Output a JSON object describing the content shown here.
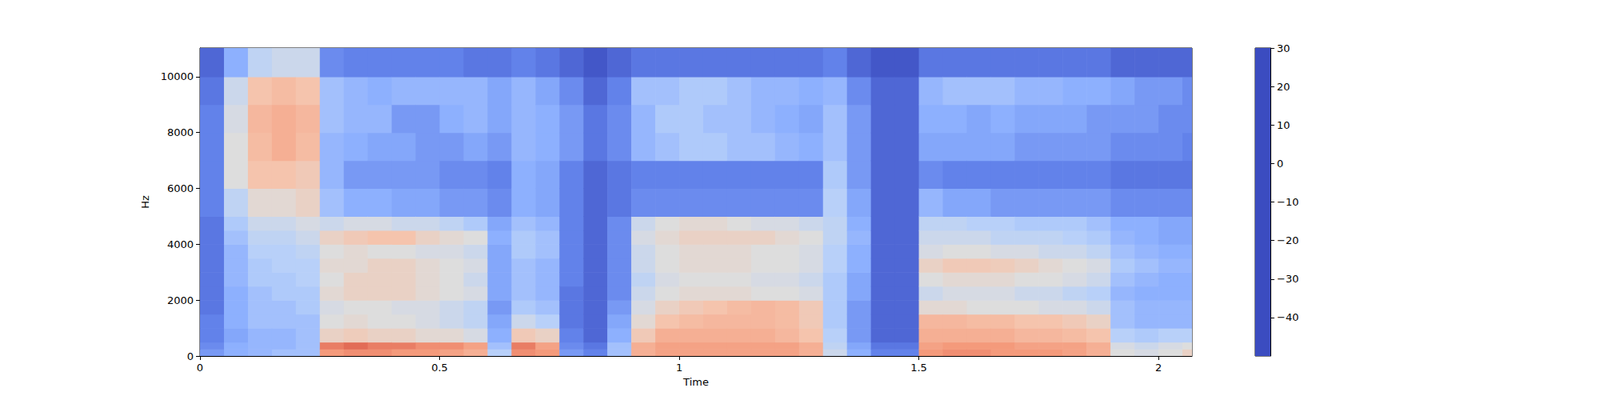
{
  "chart_data": {
    "type": "heatmap",
    "x_label": "Time",
    "y_label": "Hz",
    "xlim": [
      0,
      2.07
    ],
    "ylim": [
      0,
      11025
    ],
    "xticks": [
      0,
      0.5,
      1,
      1.5,
      2
    ],
    "yticks": [
      0,
      2000,
      4000,
      6000,
      8000,
      10000
    ],
    "grid": false,
    "time_edges": [
      0,
      0.05,
      0.1,
      0.15,
      0.2,
      0.25,
      0.3,
      0.35,
      0.4,
      0.45,
      0.5,
      0.55,
      0.6,
      0.65,
      0.7,
      0.75,
      0.8,
      0.85,
      0.9,
      0.95,
      1.0,
      1.05,
      1.1,
      1.15,
      1.2,
      1.25,
      1.3,
      1.35,
      1.4,
      1.45,
      1.5,
      1.55,
      1.6,
      1.65,
      1.7,
      1.75,
      1.8,
      1.85,
      1.9,
      1.95,
      2.0,
      2.05,
      2.07
    ],
    "freq_edges": [
      0,
      250,
      500,
      1000,
      1500,
      2000,
      2500,
      3000,
      3500,
      4000,
      4500,
      5000,
      6000,
      7000,
      8000,
      9000,
      10000,
      11025
    ],
    "cells": [
      [
        -35,
        -38,
        -40,
        -40,
        -42,
        -42,
        -42,
        -42,
        -42,
        -42,
        -42,
        -40,
        -40,
        -40,
        -40,
        -42,
        -45
      ],
      [
        -30,
        -30,
        -32,
        -30,
        -30,
        -30,
        -28,
        -28,
        -28,
        -25,
        -22,
        -18,
        -10,
        -10,
        -12,
        -15,
        -30
      ],
      [
        -28,
        -28,
        -28,
        -25,
        -25,
        -25,
        -22,
        -22,
        -20,
        -18,
        -15,
        -8,
        0,
        2,
        3,
        0,
        -18
      ],
      [
        -25,
        -28,
        -28,
        -25,
        -25,
        -22,
        -22,
        -20,
        -20,
        -18,
        -15,
        -8,
        0,
        5,
        5,
        2,
        -15
      ],
      [
        -25,
        -25,
        -25,
        -25,
        -22,
        -22,
        -20,
        -20,
        -18,
        -15,
        -12,
        -5,
        -2,
        2,
        3,
        0,
        -15
      ],
      [
        10,
        15,
        -5,
        -10,
        -12,
        -8,
        -10,
        -8,
        -10,
        -5,
        -15,
        -25,
        -28,
        -28,
        -25,
        -25,
        -38
      ],
      [
        12,
        18,
        -3,
        -8,
        -10,
        -5,
        -5,
        -8,
        -8,
        -2,
        -12,
        -30,
        -35,
        -30,
        -28,
        -28,
        -40
      ],
      [
        12,
        15,
        -5,
        -10,
        -10,
        -5,
        -5,
        -5,
        -10,
        0,
        -12,
        -30,
        -35,
        -32,
        -28,
        -30,
        -40
      ],
      [
        10,
        15,
        -5,
        -10,
        -12,
        -5,
        -5,
        -5,
        -10,
        0,
        -15,
        -32,
        -35,
        -32,
        -35,
        -28,
        -40
      ],
      [
        10,
        12,
        -8,
        -12,
        -12,
        -8,
        -8,
        -8,
        -12,
        -5,
        -15,
        -32,
        -35,
        -35,
        -35,
        -28,
        -40
      ],
      [
        8,
        12,
        -8,
        -15,
        -15,
        -10,
        -10,
        -10,
        -12,
        -8,
        -18,
        -35,
        -38,
        -35,
        -30,
        -28,
        -40
      ],
      [
        5,
        8,
        -12,
        -18,
        -18,
        -12,
        -15,
        -12,
        -15,
        -10,
        -22,
        -35,
        -38,
        -32,
        -28,
        -28,
        -42
      ],
      [
        -20,
        -25,
        -30,
        -32,
        -35,
        -32,
        -32,
        -32,
        -32,
        -30,
        -32,
        -38,
        -40,
        -35,
        -32,
        -32,
        -42
      ],
      [
        12,
        15,
        -2,
        -15,
        -22,
        -25,
        -25,
        -25,
        -22,
        -22,
        -25,
        -30,
        -30,
        -28,
        -28,
        -28,
        -40
      ],
      [
        10,
        8,
        -5,
        -20,
        -25,
        -28,
        -28,
        -28,
        -25,
        -25,
        -28,
        -32,
        -32,
        -30,
        -30,
        -32,
        -42
      ],
      [
        -35,
        -38,
        -40,
        -42,
        -42,
        -42,
        -40,
        -40,
        -40,
        -40,
        -40,
        -40,
        -40,
        -35,
        -35,
        -38,
        -45
      ],
      [
        -40,
        -42,
        -45,
        -45,
        -45,
        -45,
        -45,
        -45,
        -45,
        -45,
        -45,
        -45,
        -45,
        -42,
        -42,
        -45,
        -48
      ],
      [
        -25,
        -25,
        -30,
        -32,
        -35,
        -38,
        -38,
        -38,
        -38,
        -38,
        -38,
        -42,
        -42,
        -38,
        -38,
        -40,
        -45
      ],
      [
        5,
        5,
        -2,
        -8,
        -12,
        -15,
        -18,
        -15,
        -15,
        -12,
        -15,
        -38,
        -40,
        -28,
        -28,
        -25,
        -42
      ],
      [
        8,
        8,
        5,
        0,
        -5,
        -10,
        -12,
        -10,
        -10,
        -8,
        -10,
        -38,
        -40,
        -25,
        -22,
        -25,
        -42
      ],
      [
        8,
        8,
        5,
        2,
        -2,
        -8,
        -10,
        -8,
        -8,
        -5,
        -8,
        -38,
        -40,
        -22,
        -22,
        -22,
        -42
      ],
      [
        8,
        8,
        5,
        3,
        0,
        -8,
        -10,
        -8,
        -8,
        -5,
        -8,
        -38,
        -40,
        -22,
        -25,
        -22,
        -42
      ],
      [
        8,
        8,
        5,
        3,
        2,
        -8,
        -10,
        -8,
        -8,
        -5,
        -10,
        -38,
        -40,
        -25,
        -25,
        -25,
        -42
      ],
      [
        8,
        8,
        5,
        3,
        3,
        -10,
        -12,
        -10,
        -10,
        -5,
        -12,
        -38,
        -40,
        -25,
        -28,
        -28,
        -42
      ],
      [
        8,
        8,
        3,
        2,
        2,
        -10,
        -12,
        -10,
        -10,
        -8,
        -12,
        -38,
        -40,
        -28,
        -30,
        -28,
        -42
      ],
      [
        5,
        5,
        0,
        -2,
        -2,
        -12,
        -15,
        -12,
        -12,
        -10,
        -15,
        -38,
        -40,
        -30,
        -32,
        -30,
        -42
      ],
      [
        -15,
        -18,
        -20,
        -22,
        -22,
        -22,
        -22,
        -20,
        -20,
        -18,
        -18,
        -20,
        -22,
        -25,
        -25,
        -28,
        -40
      ],
      [
        -30,
        -32,
        -35,
        -35,
        -35,
        -32,
        -32,
        -30,
        -30,
        -28,
        -30,
        -32,
        -35,
        -35,
        -35,
        -38,
        -45
      ],
      [
        -40,
        -42,
        -45,
        -45,
        -45,
        -45,
        -45,
        -45,
        -45,
        -45,
        -45,
        -45,
        -45,
        -45,
        -45,
        -45,
        -48
      ],
      [
        -40,
        -42,
        -45,
        -45,
        -45,
        -45,
        -45,
        -45,
        -45,
        -45,
        -45,
        -45,
        -45,
        -45,
        -45,
        -45,
        -48
      ],
      [
        10,
        8,
        5,
        3,
        -8,
        -15,
        -10,
        -5,
        -12,
        -15,
        -18,
        -28,
        -38,
        -32,
        -30,
        -28,
        -42
      ],
      [
        12,
        10,
        5,
        3,
        -8,
        -12,
        -8,
        -2,
        -10,
        -15,
        -18,
        -32,
        -40,
        -32,
        -30,
        -25,
        -42
      ],
      [
        12,
        10,
        5,
        2,
        -10,
        -12,
        -8,
        -2,
        -10,
        -15,
        -20,
        -32,
        -40,
        -32,
        -32,
        -25,
        -42
      ],
      [
        10,
        10,
        5,
        2,
        -10,
        -12,
        -8,
        -3,
        -12,
        -18,
        -20,
        -35,
        -40,
        -32,
        -30,
        -25,
        -42
      ],
      [
        10,
        8,
        3,
        0,
        -10,
        -15,
        -10,
        -5,
        -12,
        -18,
        -22,
        -35,
        -40,
        -35,
        -32,
        -28,
        -42
      ],
      [
        10,
        8,
        3,
        0,
        -12,
        -15,
        -10,
        -8,
        -15,
        -18,
        -22,
        -35,
        -40,
        -35,
        -32,
        -28,
        -42
      ],
      [
        8,
        8,
        2,
        -2,
        -12,
        -18,
        -12,
        -10,
        -15,
        -20,
        -22,
        -35,
        -40,
        -35,
        -32,
        -30,
        -42
      ],
      [
        5,
        5,
        0,
        -5,
        -15,
        -20,
        -15,
        -12,
        -18,
        -22,
        -25,
        -35,
        -40,
        -35,
        -35,
        -30,
        -42
      ],
      [
        -10,
        -12,
        -20,
        -25,
        -25,
        -28,
        -25,
        -22,
        -25,
        -28,
        -30,
        -38,
        -42,
        -38,
        -35,
        -32,
        -45
      ],
      [
        -12,
        -15,
        -22,
        -28,
        -28,
        -30,
        -28,
        -25,
        -28,
        -30,
        -30,
        -38,
        -42,
        -38,
        -35,
        -35,
        -45
      ],
      [
        -10,
        -12,
        -20,
        -28,
        -28,
        -30,
        -30,
        -28,
        -30,
        -32,
        -32,
        -38,
        -42,
        -38,
        -38,
        -35,
        -45
      ],
      [
        -5,
        -10,
        -20,
        -28,
        -28,
        -30,
        -30,
        -28,
        -30,
        -32,
        -32,
        -38,
        -42,
        -40,
        -38,
        -38,
        -45
      ]
    ],
    "colorbar": {
      "range": [
        -50,
        30
      ],
      "ticks": [
        {
          "value": -40,
          "label": "−40"
        },
        {
          "value": -30,
          "label": "−30"
        },
        {
          "value": -20,
          "label": "−20"
        },
        {
          "value": -10,
          "label": "−10"
        },
        0,
        10,
        20,
        30
      ]
    }
  }
}
